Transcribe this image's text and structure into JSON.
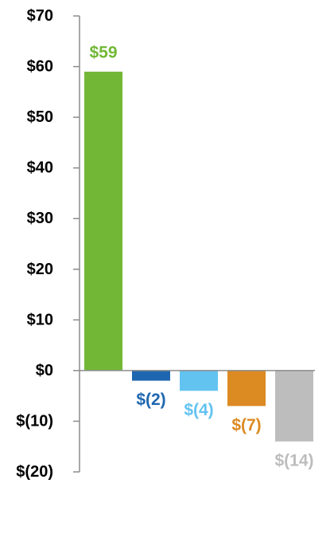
{
  "chart_data": {
    "type": "bar",
    "categories": [
      "",
      "",
      "",
      "",
      ""
    ],
    "values": [
      59,
      -2,
      -4,
      -7,
      -14
    ],
    "value_labels": [
      "$59",
      "$(2)",
      "$(4)",
      "$(7)",
      "$(14)"
    ],
    "colors": [
      "#72b836",
      "#1f66b0",
      "#62c3f0",
      "#dc8a22",
      "#bdbdbe"
    ],
    "ylim": [
      -20,
      70
    ],
    "yticks": [
      70,
      60,
      50,
      40,
      30,
      20,
      10,
      0,
      -10,
      -20
    ],
    "ytick_labels": [
      "$70",
      "$60",
      "$50",
      "$40",
      "$30",
      "$20",
      "$10",
      "$0",
      "$(10)",
      "$(20)"
    ],
    "title": "",
    "xlabel": "",
    "ylabel": "",
    "grid": false,
    "legend": false
  }
}
